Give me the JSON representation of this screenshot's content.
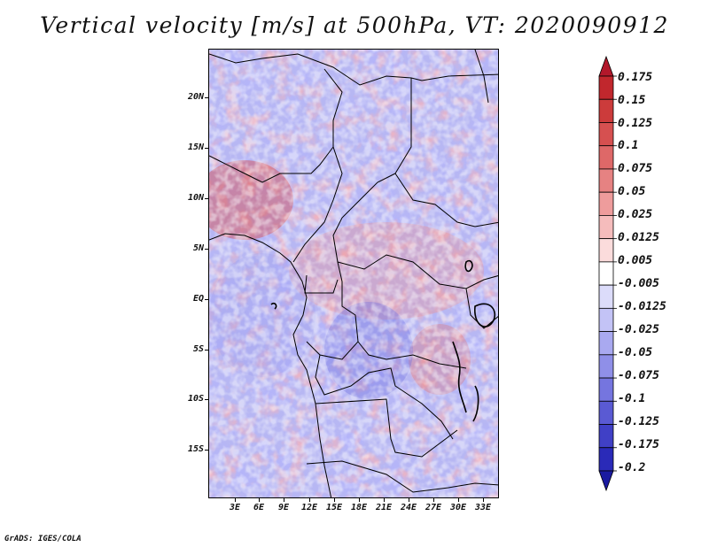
{
  "title": "Vertical velocity [m/s] at 500hPa, VT: 2020090912",
  "credit": "GrADS: IGES/COLA",
  "axes": {
    "lat_labels": [
      "20N",
      "15N",
      "10N",
      "5N",
      "EQ",
      "5S",
      "10S",
      "15S"
    ],
    "lon_labels": [
      "3E",
      "6E",
      "9E",
      "12E",
      "15E",
      "18E",
      "21E",
      "24E",
      "27E",
      "30E",
      "33E"
    ]
  },
  "colorbar": {
    "labels": [
      "0.175",
      "0.15",
      "0.125",
      "0.1",
      "0.075",
      "0.05",
      "0.025",
      "0.0125",
      "0.005",
      "-0.005",
      "-0.0125",
      "-0.025",
      "-0.05",
      "-0.075",
      "-0.1",
      "-0.125",
      "-0.175",
      "-0.2"
    ],
    "colors": [
      "#b2182b",
      "#c1272d",
      "#cc3b3b",
      "#d65050",
      "#de6868",
      "#e68282",
      "#ee9c9c",
      "#f5bcbc",
      "#fbdcdc",
      "#ffffff",
      "#dcdcfa",
      "#c3c3f6",
      "#a9a9f0",
      "#8f8fe8",
      "#7575df",
      "#5a5ad3",
      "#4040c6",
      "#2a2ab8",
      "#1a1aa0"
    ]
  }
}
